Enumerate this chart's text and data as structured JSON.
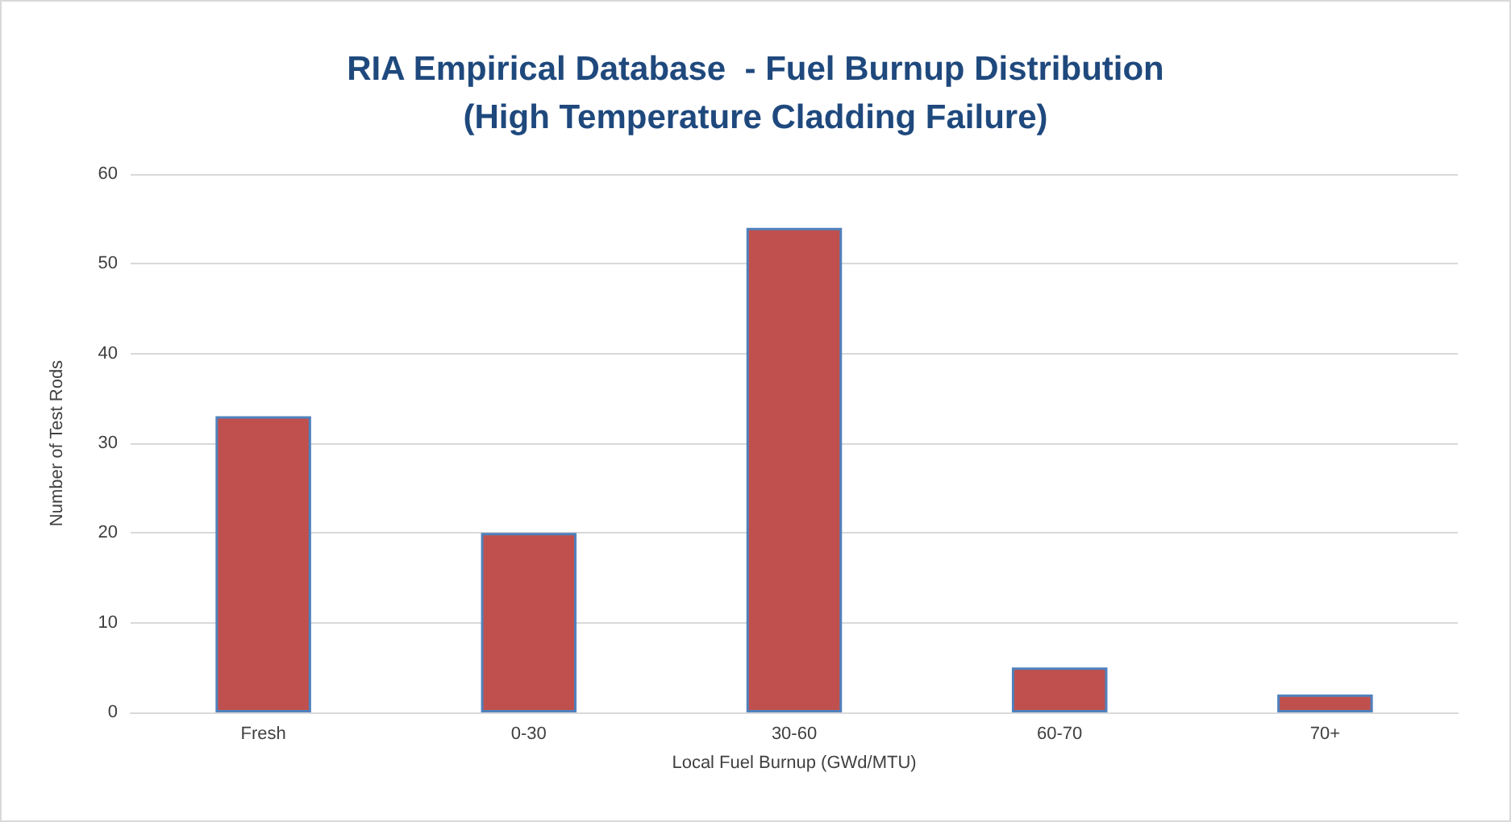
{
  "chart_data": {
    "type": "bar",
    "title": "RIA Empirical Database  - Fuel Burnup Distribution\n(High Temperature Cladding Failure)",
    "xlabel": "Local Fuel Burnup (GWd/MTU)",
    "ylabel": "Number of Test Rods",
    "categories": [
      "Fresh",
      "0-30",
      "30-60",
      "60-70",
      "70+"
    ],
    "values": [
      33,
      20,
      54,
      5,
      2
    ],
    "color": "#c0504d",
    "ylim": [
      0,
      60
    ],
    "yticks": [
      0,
      10,
      20,
      30,
      40,
      50,
      60
    ],
    "grid": "y"
  }
}
